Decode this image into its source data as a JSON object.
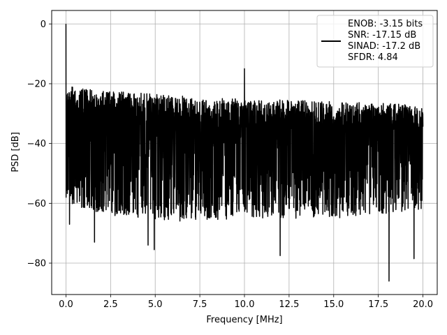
{
  "chart_data": {
    "type": "line",
    "title": "",
    "xlabel": "Frequency [MHz]",
    "ylabel": "PSD [dB]",
    "xlim": [
      -0.8,
      20.8
    ],
    "ylim": [
      -90.5,
      4.5
    ],
    "xticks": [
      0.0,
      2.5,
      5.0,
      7.5,
      10.0,
      12.5,
      15.0,
      17.5,
      20.0
    ],
    "xtick_labels": [
      "0.0",
      "2.5",
      "5.0",
      "7.5",
      "10.0",
      "12.5",
      "15.0",
      "17.5",
      "20.0"
    ],
    "yticks": [
      0,
      -20,
      -40,
      -60,
      -80
    ],
    "ytick_labels": [
      "0",
      "−20",
      "−40",
      "−60",
      "−80"
    ],
    "grid": true,
    "legend": {
      "placement": "top-right",
      "entries": [
        "ENOB: -3.15 bits",
        "SNR: -17.15 dB",
        "SINAD: -17.2 dB",
        "SFDR: 4.84"
      ]
    },
    "series": [
      {
        "color": "#000000",
        "noise_floor": {
          "x": [
            0.0,
            0.5,
            2.5,
            5.0,
            7.5,
            10.0,
            12.5,
            15.0,
            17.5,
            20.0
          ],
          "upper_envelope": [
            -20,
            -21.5,
            -22.5,
            -23.5,
            -24.5,
            -25.0,
            -25.5,
            -26.0,
            -26.5,
            -27.0
          ],
          "lower_envelope": [
            -58,
            -61,
            -64,
            -66,
            -66,
            -65,
            -65,
            -65,
            -64,
            -62
          ]
        },
        "peaks": [
          {
            "x": 0.0,
            "y": 0.0
          },
          {
            "x": 10.0,
            "y": -15.0
          }
        ],
        "dips": [
          {
            "x": 0.2,
            "y": -67
          },
          {
            "x": 1.6,
            "y": -73
          },
          {
            "x": 4.6,
            "y": -74
          },
          {
            "x": 4.95,
            "y": -75.5
          },
          {
            "x": 12.0,
            "y": -77.5
          },
          {
            "x": 18.1,
            "y": -86.0
          },
          {
            "x": 19.5,
            "y": -78.5
          }
        ]
      }
    ]
  }
}
